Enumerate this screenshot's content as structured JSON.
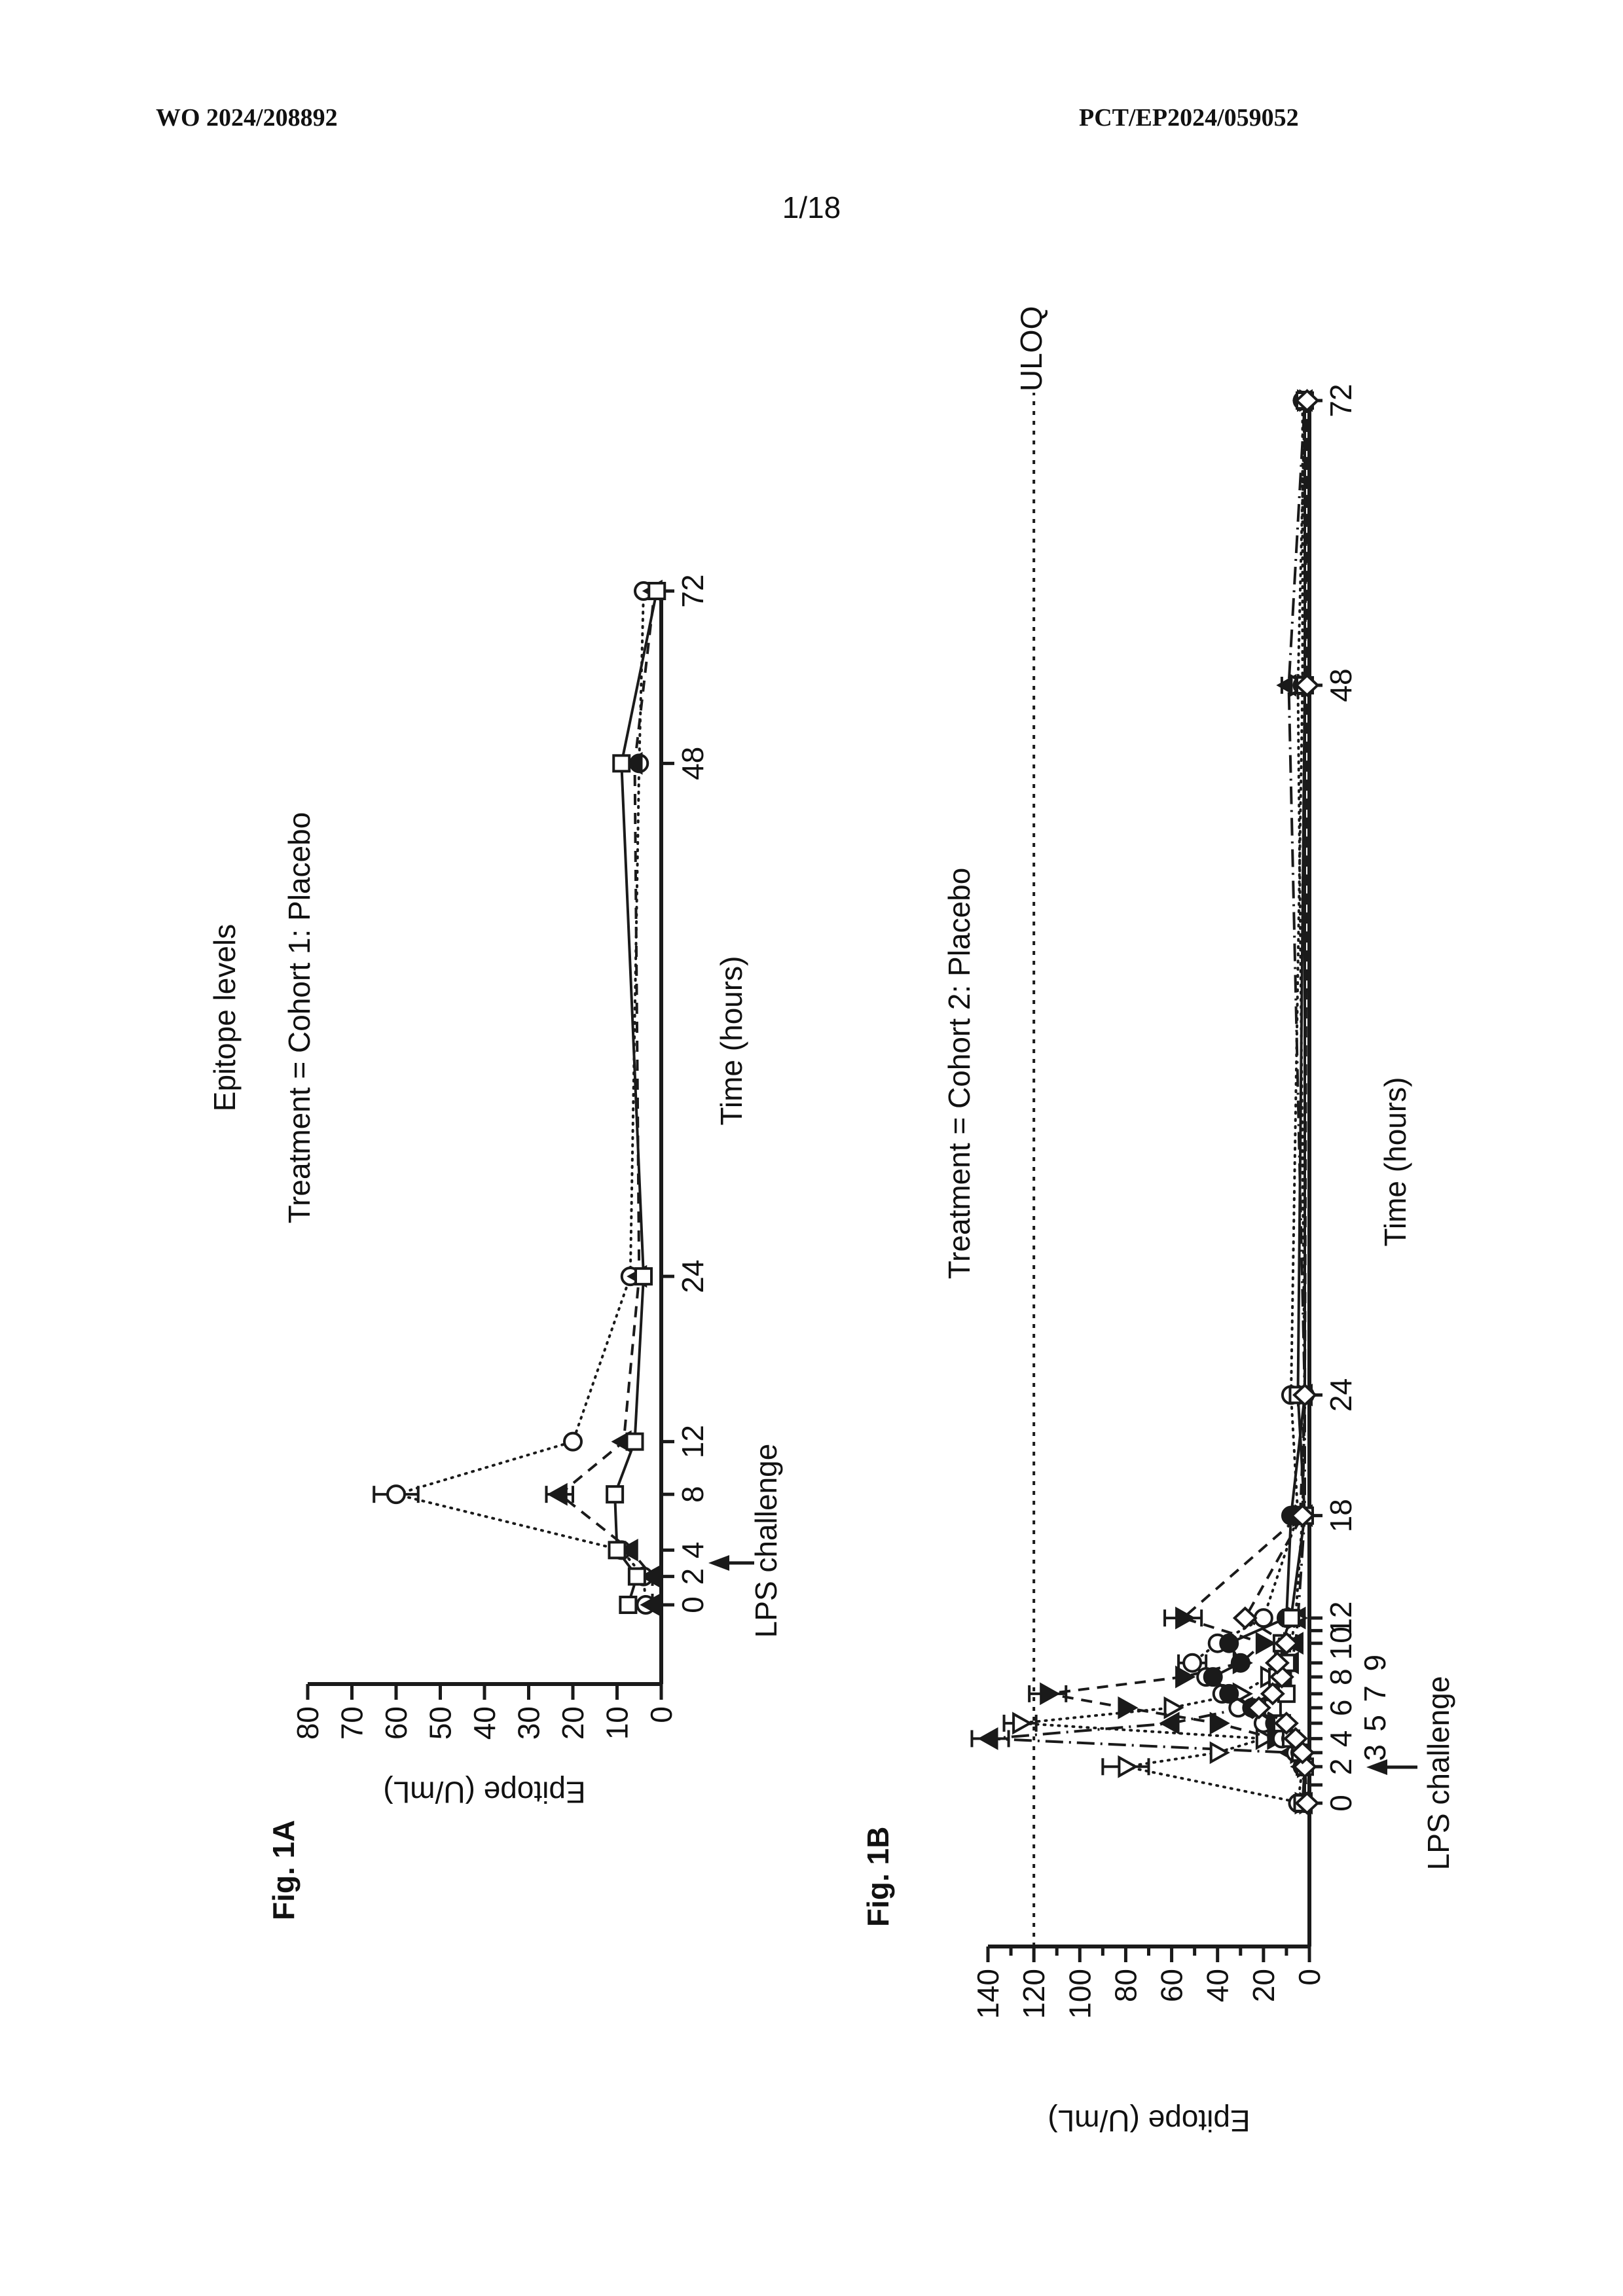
{
  "page": {
    "header_left": "WO 2024/208892",
    "header_right": "PCT/EP2024/059052",
    "page_number": "1/18",
    "ink_color": "#1a1a1a",
    "background_color": "#ffffff"
  },
  "chart_data": [
    {
      "id": "fig-1a",
      "type": "line",
      "fig_label": "Fig. 1A",
      "title": "Epitope levels",
      "subtitle": "Treatment = Cohort 1: Placebo",
      "xlabel": "Time (hours)",
      "ylabel": "Epitope (U/mL)",
      "annotation": "LPS challenge",
      "annotation_time": 3,
      "ylim": [
        0,
        80
      ],
      "y_major": 10,
      "y_label_every": 10,
      "grid": false,
      "legend": "none",
      "x_ticks": [
        {
          "t": 0,
          "label": "0",
          "pos": 0.0,
          "row": 0
        },
        {
          "t": 2,
          "label": "2",
          "pos": 0.028,
          "row": 0
        },
        {
          "t": 4,
          "label": "4",
          "pos": 0.054,
          "row": 0
        },
        {
          "t": 8,
          "label": "8",
          "pos": 0.109,
          "row": 0
        },
        {
          "t": 12,
          "label": "12",
          "pos": 0.161,
          "row": 0
        },
        {
          "t": 24,
          "label": "24",
          "pos": 0.324,
          "row": 0
        },
        {
          "t": 48,
          "label": "48",
          "pos": 0.83,
          "row": 0
        },
        {
          "t": 72,
          "label": "72",
          "pos": 1.0,
          "row": 0
        }
      ],
      "series": [
        {
          "name": "subject-circle",
          "marker": "circle-open",
          "line": "dotted",
          "x": [
            0,
            2,
            4,
            8,
            12,
            24,
            48,
            72
          ],
          "values": [
            3.5,
            4,
            9,
            60,
            20,
            7,
            5,
            4
          ],
          "errors": {
            "8": 5
          }
        },
        {
          "name": "subject-triangle",
          "marker": "triangle-up-filled",
          "line": "dashed",
          "x": [
            0,
            2,
            4,
            8,
            12,
            24,
            48,
            72
          ],
          "values": [
            2,
            2,
            7,
            23,
            8.5,
            5,
            6,
            1.5
          ],
          "errors": {
            "8": 3
          }
        },
        {
          "name": "subject-square",
          "marker": "square-open",
          "line": "solid",
          "x": [
            0,
            2,
            4,
            8,
            12,
            24,
            48,
            72
          ],
          "values": [
            7.5,
            5.5,
            10,
            10.5,
            6,
            4,
            9,
            1
          ],
          "errors": {}
        }
      ]
    },
    {
      "id": "fig-1b",
      "type": "line",
      "fig_label": "Fig. 1B",
      "title": "",
      "subtitle": "Treatment = Cohort 2: Placebo",
      "xlabel": "Time (hours)",
      "ylabel": "Epitope (U/mL)",
      "annotation": "LPS challenge",
      "annotation_time": 2.5,
      "uloq_label": "ULOQ",
      "uloq_value": 120,
      "ylim": [
        0,
        140
      ],
      "y_major": 10,
      "y_label_every": 20,
      "grid": false,
      "legend": "none",
      "x_ticks": [
        {
          "t": 0,
          "label": "0",
          "pos": 0.0,
          "row": 0
        },
        {
          "t": 1,
          "label": "",
          "pos": 0.013,
          "row": 0
        },
        {
          "t": 2,
          "label": "2",
          "pos": 0.026,
          "row": 0
        },
        {
          "t": 3,
          "label": "3",
          "pos": 0.036,
          "row": 1
        },
        {
          "t": 4,
          "label": "4",
          "pos": 0.046,
          "row": 0
        },
        {
          "t": 5,
          "label": "5",
          "pos": 0.057,
          "row": 1
        },
        {
          "t": 6,
          "label": "6",
          "pos": 0.068,
          "row": 0
        },
        {
          "t": 7,
          "label": "7",
          "pos": 0.078,
          "row": 1
        },
        {
          "t": 8,
          "label": "8",
          "pos": 0.09,
          "row": 0
        },
        {
          "t": 9,
          "label": "9",
          "pos": 0.1,
          "row": 1
        },
        {
          "t": 10,
          "label": "10",
          "pos": 0.114,
          "row": 0
        },
        {
          "t": 11,
          "label": "",
          "pos": 0.123,
          "row": 0
        },
        {
          "t": 12,
          "label": "12",
          "pos": 0.132,
          "row": 0
        },
        {
          "t": 18,
          "label": "18",
          "pos": 0.205,
          "row": 0
        },
        {
          "t": 24,
          "label": "24",
          "pos": 0.291,
          "row": 0
        },
        {
          "t": 48,
          "label": "48",
          "pos": 0.797,
          "row": 0
        },
        {
          "t": 72,
          "label": "72",
          "pos": 1.0,
          "row": 0
        }
      ],
      "series": [
        {
          "name": "subject-1",
          "marker": "triangle-up-filled",
          "line": "dashdot",
          "x": [
            0,
            2,
            3,
            4,
            5,
            6,
            7,
            8,
            9,
            10,
            12,
            18,
            24,
            48,
            72
          ],
          "values": [
            2,
            3,
            8,
            139,
            60,
            28,
            16,
            11,
            8,
            6,
            5,
            2,
            2,
            9,
            2
          ],
          "errors": {
            "4": 8,
            "48": 3
          }
        },
        {
          "name": "subject-2",
          "marker": "triangle-down-open",
          "line": "dotted",
          "x": [
            0,
            2,
            3,
            4,
            5,
            6,
            7,
            8,
            9,
            10,
            12,
            18,
            24,
            48,
            72
          ],
          "values": [
            3,
            80,
            40,
            20,
            126,
            60,
            30,
            18,
            12,
            8,
            6,
            3,
            2,
            5,
            2
          ],
          "errors": {
            "2": 10,
            "5": 7
          }
        },
        {
          "name": "subject-3",
          "marker": "triangle-down-filled",
          "line": "dashed",
          "x": [
            0,
            2,
            3,
            4,
            5,
            6,
            7,
            8,
            9,
            10,
            12,
            18,
            24,
            48,
            72
          ],
          "values": [
            1,
            2,
            5,
            15,
            40,
            80,
            114,
            55,
            30,
            20,
            55,
            4,
            2,
            2,
            1
          ],
          "errors": {
            "7": 8,
            "12": 8
          }
        },
        {
          "name": "subject-4",
          "marker": "circle-open",
          "line": "dotted",
          "x": [
            0,
            2,
            3,
            4,
            5,
            6,
            7,
            8,
            9,
            10,
            12,
            18,
            24,
            48,
            72
          ],
          "values": [
            5,
            3,
            6,
            12,
            20,
            31,
            38,
            45,
            51,
            40,
            20,
            5,
            8,
            3,
            3
          ],
          "errors": {
            "9": 6
          }
        },
        {
          "name": "subject-5",
          "marker": "circle-filled",
          "line": "solid",
          "x": [
            0,
            2,
            3,
            4,
            5,
            6,
            7,
            8,
            9,
            10,
            12,
            18,
            24,
            48,
            72
          ],
          "values": [
            2,
            2,
            4,
            8,
            15,
            25,
            35,
            42,
            30,
            35,
            10,
            8,
            2,
            2,
            2
          ],
          "errors": {}
        },
        {
          "name": "subject-6",
          "marker": "square-open",
          "line": "solid",
          "x": [
            0,
            2,
            3,
            4,
            5,
            6,
            7,
            8,
            9,
            10,
            12,
            18,
            24,
            48,
            72
          ],
          "values": [
            3,
            2,
            4,
            8,
            12,
            16,
            10,
            14,
            10,
            12,
            8,
            2,
            5,
            2,
            2
          ],
          "errors": {}
        },
        {
          "name": "subject-7",
          "marker": "diamond-open",
          "line": "dashed",
          "x": [
            0,
            2,
            3,
            4,
            5,
            6,
            7,
            8,
            9,
            10,
            12,
            18,
            24,
            48,
            72
          ],
          "values": [
            1,
            2,
            3,
            6,
            10,
            22,
            16,
            12,
            14,
            10,
            28,
            3,
            2,
            1,
            1
          ],
          "errors": {}
        }
      ]
    }
  ]
}
